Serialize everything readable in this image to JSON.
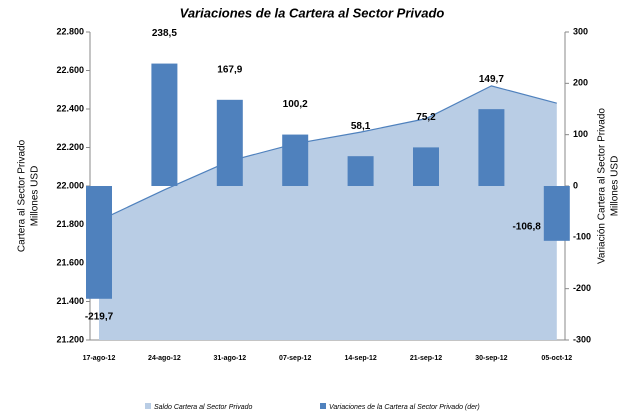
{
  "chart_data": {
    "type": "combo",
    "title": "Variaciones de la Cartera al Sector Privado",
    "ylabel": [
      "Cartera al Sector Privado",
      "Millones USD"
    ],
    "y2label": [
      "Variación Cartera al Sector Privado",
      "Millones USD"
    ],
    "categories": [
      "17-ago-12",
      "24-ago-12",
      "31-ago-12",
      "07-sep-12",
      "14-sep-12",
      "21-sep-12",
      "30-sep-12",
      "05-oct-12"
    ],
    "series": [
      {
        "name": "Saldo Cartera al Sector Privado",
        "type": "area",
        "axis": "y",
        "color": "#b9cde5",
        "line_color": "#4f81bd",
        "values": [
          21820,
          21980,
          22130,
          22220,
          22280,
          22350,
          22520,
          22430
        ]
      },
      {
        "name": "Variaciones de la Cartera al Sector Privado (der)",
        "type": "bar",
        "axis": "y2",
        "color": "#4f81bd",
        "values": [
          -219.7,
          238.5,
          167.9,
          100.2,
          58.1,
          75.2,
          149.7,
          -106.8
        ],
        "value_labels": [
          "-219,7",
          "238,5",
          "167,9",
          "100,2",
          "58,1",
          "75,2",
          "149,7",
          "-106,8"
        ]
      }
    ],
    "ylim": [
      21200,
      22800
    ],
    "yticks": [
      {
        "value": 21200,
        "label": "21.200"
      },
      {
        "value": 21400,
        "label": "21.400"
      },
      {
        "value": 21600,
        "label": "21.600"
      },
      {
        "value": 21800,
        "label": "21.800"
      },
      {
        "value": 22000,
        "label": "22.000"
      },
      {
        "value": 22200,
        "label": "22.200"
      },
      {
        "value": 22400,
        "label": "22.400"
      },
      {
        "value": 22600,
        "label": "22.600"
      },
      {
        "value": 22800,
        "label": "22.800"
      }
    ],
    "y2lim": [
      -300,
      300
    ],
    "y2ticks": [
      -300,
      -200,
      -100,
      0,
      100,
      200,
      300
    ],
    "legend": "bottom"
  }
}
